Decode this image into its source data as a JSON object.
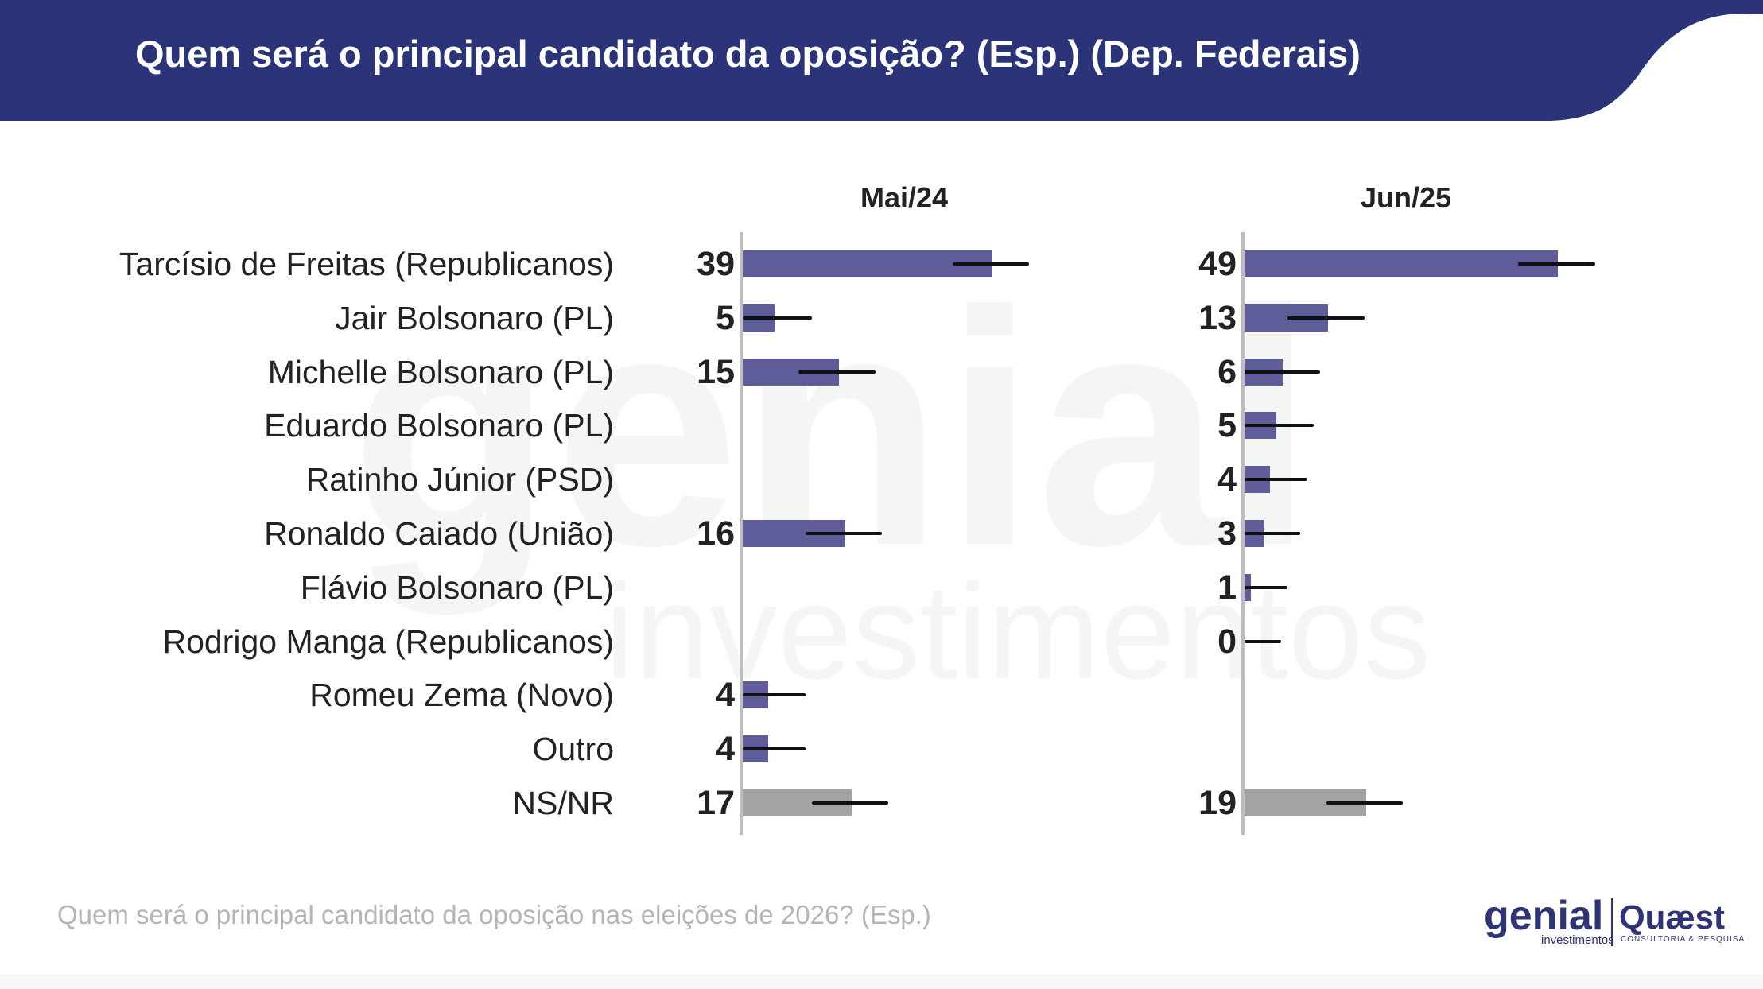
{
  "header": {
    "title": "Quem será o principal candidato da oposição? (Esp.) (Dep. Federais)",
    "color": "#2b3478"
  },
  "watermark": {
    "big": "genial",
    "small": "investimentos"
  },
  "footer": {
    "question": "Quem será o principal candidato da oposição nas eleições de 2026? (Esp.)"
  },
  "logos": {
    "genial": "genial",
    "genial_sub": "investimentos",
    "quaest": "Quæst",
    "quaest_sub": "CONSULTORIA & PESQUISA"
  },
  "colors": {
    "bar": "#5e5c99",
    "bar_nsnr": "#a3a3a3",
    "error": "#111111",
    "axis": "#bdbdbd"
  },
  "chart_data": {
    "type": "bar",
    "orientation": "horizontal",
    "categories": [
      "Tarcísio de Freitas (Republicanos)",
      "Jair Bolsonaro (PL)",
      "Michelle Bolsonaro (PL)",
      "Eduardo Bolsonaro (PL)",
      "Ratinho Júnior (PSD)",
      "Ronaldo Caiado (União)",
      "Flávio Bolsonaro (PL)",
      "Rodrigo Manga (Republicanos)",
      "Romeu Zema (Novo)",
      "Outro",
      "NS/NR"
    ],
    "series": [
      {
        "name": "Mai/24",
        "values": [
          39,
          5,
          15,
          null,
          null,
          16,
          null,
          null,
          4,
          4,
          17
        ],
        "margin_of_error": 8
      },
      {
        "name": "Jun/25",
        "values": [
          49,
          13,
          6,
          5,
          4,
          3,
          1,
          0,
          null,
          null,
          19
        ],
        "margin_of_error": 8
      }
    ],
    "grey_categories": [
      "NS/NR"
    ],
    "xlim": [
      0,
      60
    ],
    "grid": false,
    "legend": "none"
  }
}
